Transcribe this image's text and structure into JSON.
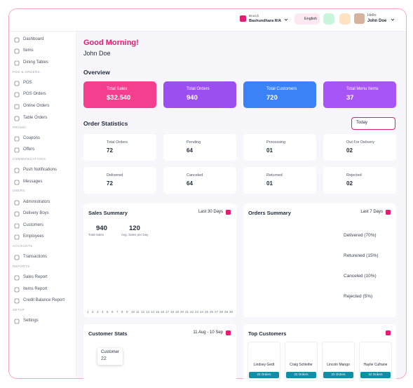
{
  "header": {
    "branch_label": "Brunch",
    "branch": "Bashundhara R/A",
    "language": "English",
    "greeting": "Hello",
    "user": "John Doe"
  },
  "sidebar": [
    {
      "label": "Dashboard"
    },
    {
      "label": "Items"
    },
    {
      "label": "Dining Tables"
    },
    {
      "section": "POS & ORDERS"
    },
    {
      "label": "POS"
    },
    {
      "label": "POS Orders"
    },
    {
      "label": "Online Orders"
    },
    {
      "label": "Table Orders"
    },
    {
      "section": "PROMO"
    },
    {
      "label": "Coupons"
    },
    {
      "label": "Offers"
    },
    {
      "section": "COMMUNICATIONS"
    },
    {
      "label": "Push Notifications"
    },
    {
      "label": "Messages"
    },
    {
      "section": "USERS"
    },
    {
      "label": "Administrators"
    },
    {
      "label": "Delivery Boys"
    },
    {
      "label": "Customers"
    },
    {
      "label": "Employees"
    },
    {
      "section": "ACCOUNTS"
    },
    {
      "label": "Transactions"
    },
    {
      "section": "REPORTS"
    },
    {
      "label": "Sales Report"
    },
    {
      "label": "Items Report"
    },
    {
      "label": "Credit Balance Report"
    },
    {
      "section": "SETUP"
    },
    {
      "label": "Settings"
    }
  ],
  "welcome": {
    "greeting": "Good Morning!",
    "name": "John Doe"
  },
  "overview": {
    "title": "Overview",
    "cards": [
      {
        "label": "Total Sales",
        "value": "$32.540"
      },
      {
        "label": "Total Orders",
        "value": "940"
      },
      {
        "label": "Total Customers",
        "value": "720"
      },
      {
        "label": "Total Menu Items",
        "value": "37"
      }
    ]
  },
  "order_statistics": {
    "title": "Order Statistics",
    "filter": "Today",
    "items": [
      {
        "label": "Total Orders",
        "value": "72"
      },
      {
        "label": "Pending",
        "value": "64"
      },
      {
        "label": "Processing",
        "value": "01"
      },
      {
        "label": "Out For Delivery",
        "value": "02"
      },
      {
        "label": "Delivered",
        "value": "72"
      },
      {
        "label": "Canceled",
        "value": "64"
      },
      {
        "label": "Returned",
        "value": "01"
      },
      {
        "label": "Rejected",
        "value": "02"
      }
    ]
  },
  "sales_summary": {
    "title": "Sales Summary",
    "range": "Last 30 Days",
    "stats": [
      {
        "value": "940",
        "label": "Total Sales"
      },
      {
        "value": "120",
        "label": "Avg. Sales per Day"
      }
    ],
    "x_labels": [
      "1",
      "2",
      "3",
      "4",
      "5",
      "6",
      "7",
      "8",
      "9",
      "10",
      "11",
      "12",
      "13",
      "14",
      "15",
      "16",
      "17",
      "18",
      "19",
      "20",
      "21",
      "22",
      "23",
      "24",
      "25",
      "26",
      "27",
      "28",
      "29",
      "30"
    ]
  },
  "orders_summary": {
    "title": "Orders Summary",
    "range": "Last 7 Days",
    "legend": [
      "Delivered (70%)",
      "Returened (15%)",
      "Canceled (10%)",
      "Rejected (5%)"
    ]
  },
  "customer_stats": {
    "title": "Customer Stats",
    "range": "11 Aug - 10 Sep",
    "tooltip": {
      "label": "Customer",
      "value": "22"
    }
  },
  "top_customers": {
    "title": "Top Customers",
    "customers": [
      {
        "name": "Lindsey Gedt",
        "orders": "22 Orders"
      },
      {
        "name": "Craig Schleifer",
        "orders": "22 Orders"
      },
      {
        "name": "Lincoln Mango",
        "orders": "22 Orders"
      },
      {
        "name": "Haylie Culhane",
        "orders": "22 Orders"
      }
    ]
  }
}
